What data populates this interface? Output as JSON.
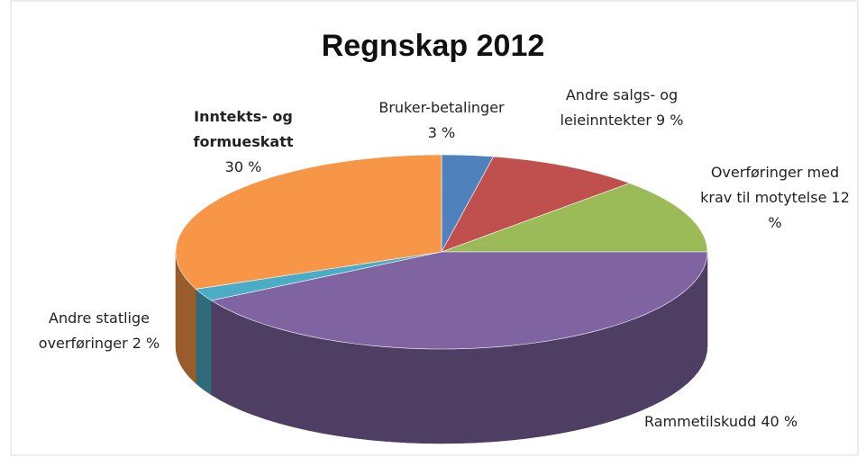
{
  "chart_data": {
    "type": "pie",
    "title": "Regnskap 2012",
    "categories": [
      "Bruker-betalinger",
      "Andre salgs- og leieinntekter",
      "Overføringer med krav til motytelse",
      "Rammetilskudd",
      "Andre statlige overføringer",
      "Inntekts- og formueskatt"
    ],
    "values": [
      3,
      9,
      12,
      40,
      2,
      30
    ],
    "value_labels": [
      "3 %",
      "9 %",
      "12 %",
      "40 %",
      "2 %",
      "30 %"
    ],
    "colors": [
      "#4f81bd",
      "#c0504d",
      "#9bbb59",
      "#8064a2",
      "#4bacc6",
      "#f79646"
    ]
  }
}
